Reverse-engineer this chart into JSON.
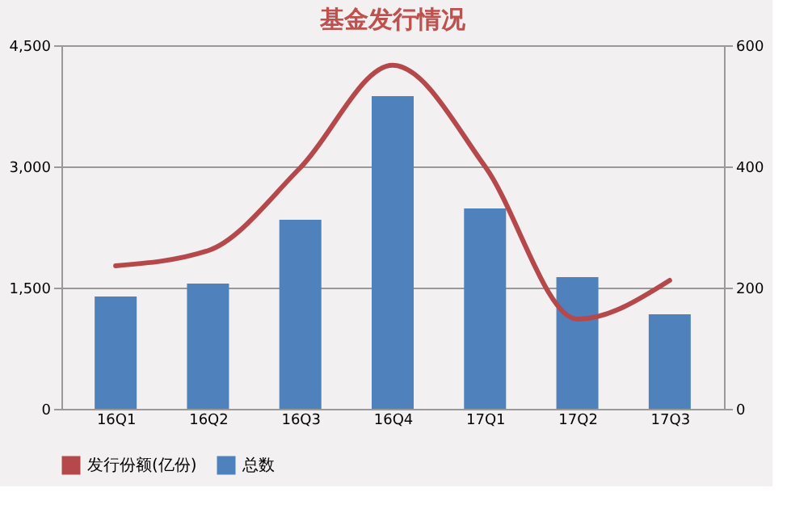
{
  "chart_data": {
    "type": "bar",
    "title": "基金发行情况",
    "categories": [
      "16Q1",
      "16Q2",
      "16Q3",
      "16Q4",
      "17Q1",
      "17Q2",
      "17Q3"
    ],
    "series": [
      {
        "name": "发行份额(亿份)",
        "type": "line",
        "axis": "y2",
        "color": "#b5484a",
        "values": [
          236,
          261,
          398,
          567,
          400,
          148,
          212
        ]
      },
      {
        "name": "总数",
        "type": "bar",
        "color": "#4f81bd",
        "values": [
          1390,
          1550,
          2340,
          3870,
          2480,
          1630,
          1170
        ]
      }
    ],
    "ylim": [
      0,
      4500
    ],
    "yticks": [
      0,
      {
        "value": 1500,
        "label": "1,500"
      },
      {
        "value": 3000,
        "label": "3,000"
      },
      {
        "value": 4500,
        "label": "4,500"
      }
    ],
    "y2lim": [
      0,
      600
    ],
    "y2ticks": [
      0,
      200,
      400,
      600
    ],
    "grid": "y",
    "legend": "bottom"
  }
}
